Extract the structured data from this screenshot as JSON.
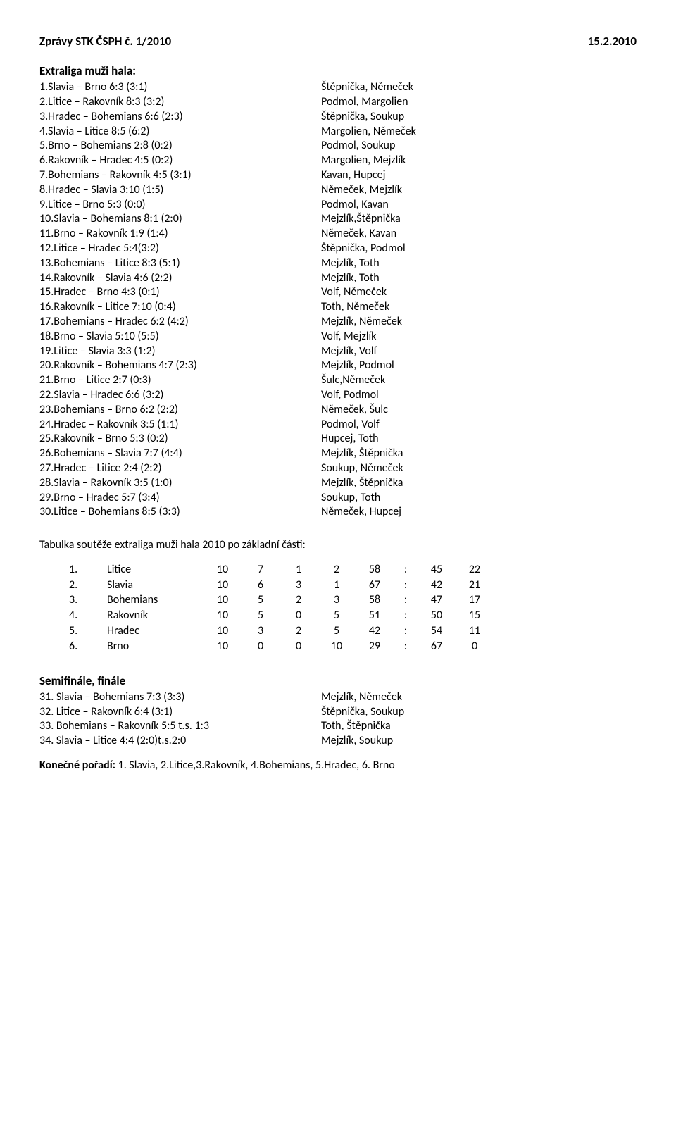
{
  "header": {
    "title_left": "Zprávy STK ČSPH č. 1/2010",
    "title_right": "15.2.2010"
  },
  "section1": {
    "heading": "Extraliga muži hala:",
    "rows": [
      {
        "left": "1.Slavia – Brno 6:3 (3:1)",
        "right": "Štěpnička, Němeček"
      },
      {
        "left": "2.Litice – Rakovník 8:3 (3:2)",
        "right": "Podmol, Margolien"
      },
      {
        "left": "3.Hradec – Bohemians 6:6 (2:3)",
        "right": "Štěpnička, Soukup"
      },
      {
        "left": "4.Slavia – Litice 8:5 (6:2)",
        "right": "Margolien, Němeček"
      },
      {
        "left": "5.Brno – Bohemians 2:8 (0:2)",
        "right": "Podmol, Soukup"
      },
      {
        "left": "6.Rakovník – Hradec 4:5 (0:2)",
        "right": "Margolien, Mejzlík"
      },
      {
        "left": "7.Bohemians – Rakovník 4:5 (3:1)",
        "right": "Kavan, Hupcej"
      },
      {
        "left": "8.Hradec – Slavia 3:10 (1:5)",
        "right": "Němeček, Mejzlík"
      },
      {
        "left": "9.Litice – Brno 5:3 (0:0)",
        "right": "Podmol, Kavan"
      },
      {
        "left": "10.Slavia – Bohemians 8:1 (2:0)",
        "right": "Mejzlík,Štěpnička"
      },
      {
        "left": "11.Brno – Rakovník 1:9 (1:4)",
        "right": "Němeček, Kavan"
      },
      {
        "left": "12.Litice – Hradec 5:4(3:2)",
        "right": "Štěpnička, Podmol"
      },
      {
        "left": "13.Bohemians – Litice 8:3 (5:1)",
        "right": "Mejzlík, Toth"
      },
      {
        "left": "14.Rakovník – Slavia 4:6 (2:2)",
        "right": "Mejzlík, Toth"
      },
      {
        "left": "15.Hradec – Brno 4:3 (0:1)",
        "right": "Volf, Němeček"
      },
      {
        "left": "16.Rakovník – Litice 7:10 (0:4)",
        "right": "Toth, Němeček"
      },
      {
        "left": "17.Bohemians – Hradec 6:2 (4:2)",
        "right": "Mejzlík, Němeček"
      },
      {
        "left": "18.Brno – Slavia 5:10 (5:5)",
        "right": "Volf, Mejzlík"
      },
      {
        "left": "19.Litice – Slavia 3:3 (1:2)",
        "right": "Mejzlík, Volf"
      },
      {
        "left": "20.Rakovník – Bohemians 4:7 (2:3)",
        "right": "Mejzlík, Podmol"
      },
      {
        "left": "21.Brno – Litice 2:7 (0:3)",
        "right": "Šulc,Němeček"
      },
      {
        "left": "22.Slavia – Hradec 6:6 (3:2)",
        "right": "Volf, Podmol"
      },
      {
        "left": "23.Bohemians – Brno 6:2 (2:2)",
        "right": "Němeček, Šulc"
      },
      {
        "left": "24.Hradec – Rakovník 3:5 (1:1)",
        "right": "Podmol, Volf"
      },
      {
        "left": "25.Rakovník – Brno 5:3 (0:2)",
        "right": "Hupcej, Toth"
      },
      {
        "left": "26.Bohemians – Slavia 7:7 (4:4)",
        "right": "Mejzlík, Štěpnička"
      },
      {
        "left": "27.Hradec – Litice 2:4 (2:2)",
        "right": "Soukup, Němeček"
      },
      {
        "left": "28.Slavia – Rakovník 3:5 (1:0)",
        "right": "Mejzlík, Štěpnička"
      },
      {
        "left": "29.Brno – Hradec 5:7 (3:4)",
        "right": "Soukup, Toth"
      },
      {
        "left": "30.Litice – Bohemians 8:5 (3:3)",
        "right": "Němeček, Hupcej"
      }
    ]
  },
  "standings": {
    "caption": "Tabulka soutěže extraliga muži hala 2010 po základní části:",
    "rows": [
      {
        "pos": "1.",
        "team": "Litice",
        "p": "10",
        "w": "7",
        "d": "1",
        "l": "2",
        "gf": "58",
        "colon": ":",
        "ga": "45",
        "pts": "22"
      },
      {
        "pos": "2.",
        "team": "Slavia",
        "p": "10",
        "w": "6",
        "d": "3",
        "l": "1",
        "gf": "67",
        "colon": ":",
        "ga": "42",
        "pts": "21"
      },
      {
        "pos": "3.",
        "team": "Bohemians",
        "p": "10",
        "w": "5",
        "d": "2",
        "l": "3",
        "gf": "58",
        "colon": ":",
        "ga": "47",
        "pts": "17"
      },
      {
        "pos": "4.",
        "team": "Rakovník",
        "p": "10",
        "w": "5",
        "d": "0",
        "l": "5",
        "gf": "51",
        "colon": ":",
        "ga": "50",
        "pts": "15"
      },
      {
        "pos": "5.",
        "team": "Hradec",
        "p": "10",
        "w": "3",
        "d": "2",
        "l": "5",
        "gf": "42",
        "colon": ":",
        "ga": "54",
        "pts": "11"
      },
      {
        "pos": "6.",
        "team": "Brno",
        "p": "10",
        "w": "0",
        "d": "0",
        "l": "10",
        "gf": "29",
        "colon": ":",
        "ga": "67",
        "pts": "0"
      }
    ]
  },
  "section2": {
    "heading": "Semifinále, finále",
    "rows": [
      {
        "left": "31. Slavia – Bohemians 7:3 (3:3)",
        "right": "Mejzlík, Němeček"
      },
      {
        "left": "32. Litice – Rakovník 6:4 (3:1)",
        "right": "Štěpnička, Soukup"
      },
      {
        "left": "33. Bohemians – Rakovník  5:5 t.s. 1:3",
        "right": "Toth, Štěpnička"
      },
      {
        "left": "34. Slavia – Litice 4:4 (2:0)t.s.2:0",
        "right": "Mejzlík, Soukup"
      }
    ]
  },
  "final_order": {
    "label": "Konečné pořadí:",
    "text": " 1. Slavia, 2.Litice,3.Rakovník, 4.Bohemians, 5.Hradec, 6. Brno"
  }
}
